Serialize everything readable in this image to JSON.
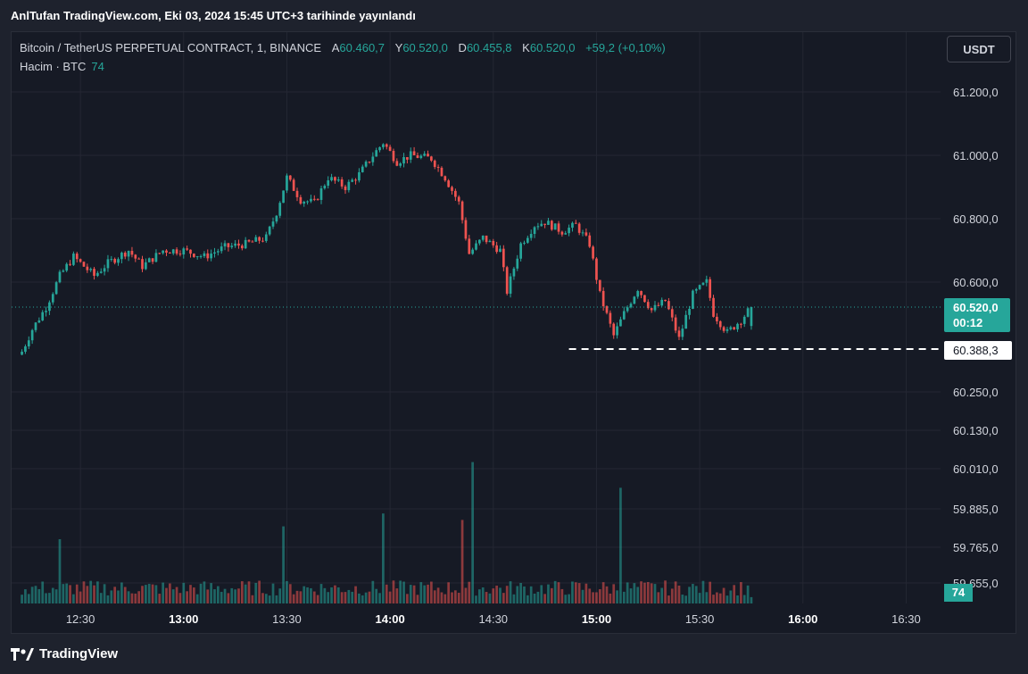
{
  "publish_line": "AnlTufan TradingView.com, Eki 03, 2024 15:45 UTC+3 tarihinde yayınlandı",
  "legend": {
    "symbol": "Bitcoin / TetherUS PERPETUAL CONTRACT, 1, BINANCE",
    "open_label": "A",
    "open_value": "60.460,7",
    "high_label": "Y",
    "high_value": "60.520,0",
    "low_label": "D",
    "low_value": "60.455,8",
    "close_label": "K",
    "close_value": "60.520,0",
    "change": "+59,2 (+0,10%)",
    "volume_label": "Hacim · BTC",
    "volume_value": "74"
  },
  "currency_button": "USDT",
  "price_tag": {
    "price": "60.520,0",
    "countdown": "00:12"
  },
  "level_tag": "60.388,3",
  "volume_tag": "74",
  "footer_brand": "TradingView",
  "colors": {
    "up": "#26a69a",
    "down": "#ef5350",
    "background": "#161a25",
    "grid": "#242733"
  },
  "chart_data": {
    "type": "candlestick",
    "interval_minutes": 1,
    "x_start_time": "12:13",
    "x_end_time": "15:45",
    "xlim_time": [
      "12:10",
      "16:40"
    ],
    "x_ticks": [
      "12:30",
      "13:00",
      "13:30",
      "14:00",
      "14:30",
      "15:00",
      "15:30",
      "16:00",
      "16:30"
    ],
    "x_ticks_bold": [
      "13:00",
      "14:00",
      "15:00",
      "16:00"
    ],
    "y_ticks": [
      {
        "label": "61.200,0",
        "value": 61200
      },
      {
        "label": "61.000,0",
        "value": 61000
      },
      {
        "label": "60.800,0",
        "value": 60800
      },
      {
        "label": "60.600,0",
        "value": 60600
      },
      {
        "label": "60.250,0",
        "value": 60250
      },
      {
        "label": "60.130,0",
        "value": 60130
      },
      {
        "label": "60.010,0",
        "value": 60010
      },
      {
        "label": "59.885,0",
        "value": 59885
      },
      {
        "label": "59.765,0",
        "value": 59765
      },
      {
        "label": "59.655,0",
        "value": 59655
      }
    ],
    "y_scale": "non-linear (labels at ticks)",
    "horizontal_level": {
      "value": 60388.3,
      "from_time": "14:52",
      "style": "dashed",
      "color": "#ffffff"
    },
    "last_price_line": {
      "value": 60520.0,
      "style": "dotted",
      "color": "#26a69a"
    },
    "close_path": [
      {
        "t": "12:13",
        "c": 60380
      },
      {
        "t": "12:16",
        "c": 60450
      },
      {
        "t": "12:20",
        "c": 60520
      },
      {
        "t": "12:24",
        "c": 60620
      },
      {
        "t": "12:28",
        "c": 60680
      },
      {
        "t": "12:34",
        "c": 60620
      },
      {
        "t": "12:38",
        "c": 60660
      },
      {
        "t": "12:44",
        "c": 60700
      },
      {
        "t": "12:48",
        "c": 60650
      },
      {
        "t": "12:54",
        "c": 60700
      },
      {
        "t": "13:00",
        "c": 60700
      },
      {
        "t": "13:06",
        "c": 60680
      },
      {
        "t": "13:12",
        "c": 60710
      },
      {
        "t": "13:18",
        "c": 60720
      },
      {
        "t": "13:24",
        "c": 60740
      },
      {
        "t": "13:27",
        "c": 60820
      },
      {
        "t": "13:30",
        "c": 60930
      },
      {
        "t": "13:34",
        "c": 60860
      },
      {
        "t": "13:38",
        "c": 60850
      },
      {
        "t": "13:42",
        "c": 60930
      },
      {
        "t": "13:47",
        "c": 60900
      },
      {
        "t": "13:51",
        "c": 60940
      },
      {
        "t": "13:55",
        "c": 61000
      },
      {
        "t": "13:58",
        "c": 61040
      },
      {
        "t": "14:02",
        "c": 60980
      },
      {
        "t": "14:06",
        "c": 61000
      },
      {
        "t": "14:12",
        "c": 60990
      },
      {
        "t": "14:16",
        "c": 60930
      },
      {
        "t": "14:20",
        "c": 60850
      },
      {
        "t": "14:23",
        "c": 60690
      },
      {
        "t": "14:27",
        "c": 60740
      },
      {
        "t": "14:32",
        "c": 60700
      },
      {
        "t": "14:34",
        "c": 60570
      },
      {
        "t": "14:38",
        "c": 60720
      },
      {
        "t": "14:42",
        "c": 60780
      },
      {
        "t": "14:45",
        "c": 60790
      },
      {
        "t": "14:50",
        "c": 60760
      },
      {
        "t": "14:54",
        "c": 60780
      },
      {
        "t": "14:58",
        "c": 60720
      },
      {
        "t": "15:01",
        "c": 60560
      },
      {
        "t": "15:05",
        "c": 60430
      },
      {
        "t": "15:08",
        "c": 60500
      },
      {
        "t": "15:12",
        "c": 60580
      },
      {
        "t": "15:16",
        "c": 60510
      },
      {
        "t": "15:20",
        "c": 60540
      },
      {
        "t": "15:24",
        "c": 60420
      },
      {
        "t": "15:28",
        "c": 60560
      },
      {
        "t": "15:32",
        "c": 60600
      },
      {
        "t": "15:34",
        "c": 60500
      },
      {
        "t": "15:38",
        "c": 60440
      },
      {
        "t": "15:42",
        "c": 60480
      },
      {
        "t": "15:45",
        "c": 60520
      }
    ],
    "volume_spikes": [
      {
        "t": "12:24",
        "v": 150
      },
      {
        "t": "13:29",
        "v": 180
      },
      {
        "t": "13:58",
        "v": 210
      },
      {
        "t": "14:21",
        "v": 195
      },
      {
        "t": "14:24",
        "v": 330
      },
      {
        "t": "15:07",
        "v": 270
      }
    ],
    "volume_typical": 40,
    "last_volume": 74
  }
}
